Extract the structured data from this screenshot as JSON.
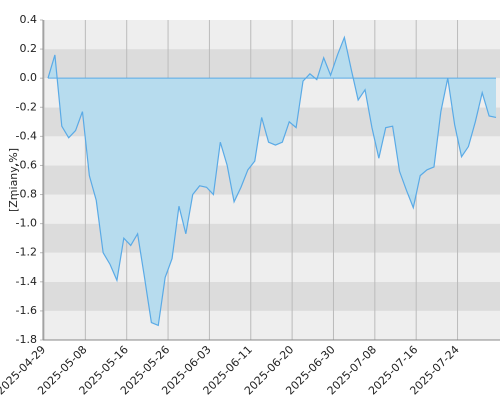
{
  "chart_data": {
    "type": "area",
    "y_label": "[Zmiany,%]",
    "categories": [
      "2025-04-29",
      null,
      null,
      null,
      null,
      null,
      "2025-05-08",
      null,
      null,
      null,
      null,
      null,
      "2025-05-16",
      null,
      null,
      null,
      null,
      null,
      "2025-05-26",
      null,
      null,
      null,
      null,
      null,
      "2025-06-03",
      null,
      null,
      null,
      null,
      null,
      "2025-06-11",
      null,
      null,
      null,
      null,
      null,
      "2025-06-20",
      null,
      null,
      null,
      null,
      null,
      "2025-06-30",
      null,
      null,
      null,
      null,
      null,
      "2025-07-08",
      null,
      null,
      null,
      null,
      null,
      "2025-07-16",
      null,
      null,
      null,
      null,
      null,
      "2025-07-24",
      null,
      null,
      null,
      null,
      null
    ],
    "values": [
      0.0,
      0.16,
      -0.33,
      -0.41,
      -0.36,
      -0.23,
      -0.67,
      -0.84,
      -1.2,
      -1.28,
      -1.39,
      -1.1,
      -1.15,
      -1.07,
      -1.37,
      -1.68,
      -1.7,
      -1.37,
      -1.24,
      -0.88,
      -1.07,
      -0.8,
      -0.74,
      -0.75,
      -0.8,
      -0.44,
      -0.6,
      -0.85,
      -0.75,
      -0.63,
      -0.57,
      -0.27,
      -0.44,
      -0.46,
      -0.44,
      -0.3,
      -0.34,
      -0.02,
      0.03,
      -0.01,
      0.14,
      0.02,
      0.16,
      0.28,
      0.06,
      -0.15,
      -0.08,
      -0.34,
      -0.55,
      -0.34,
      -0.33,
      -0.64,
      -0.77,
      -0.89,
      -0.67,
      -0.63,
      -0.61,
      -0.23,
      0.0,
      -0.32,
      -0.54,
      -0.47,
      -0.3,
      -0.1,
      -0.26,
      -0.27
    ],
    "color": "#5aaae6",
    "fill_color": "#b7dcee",
    "ylim": [
      -1.8,
      0.4
    ],
    "yticks": [
      -1.8,
      -1.6,
      -1.4,
      -1.2,
      {
        "value": -1.0,
        "label": "-1.0"
      },
      -0.8,
      -0.6,
      -0.4,
      -0.2,
      {
        "value": 0,
        "label": "0.0"
      },
      0.2,
      0.4
    ],
    "grid": true
  }
}
